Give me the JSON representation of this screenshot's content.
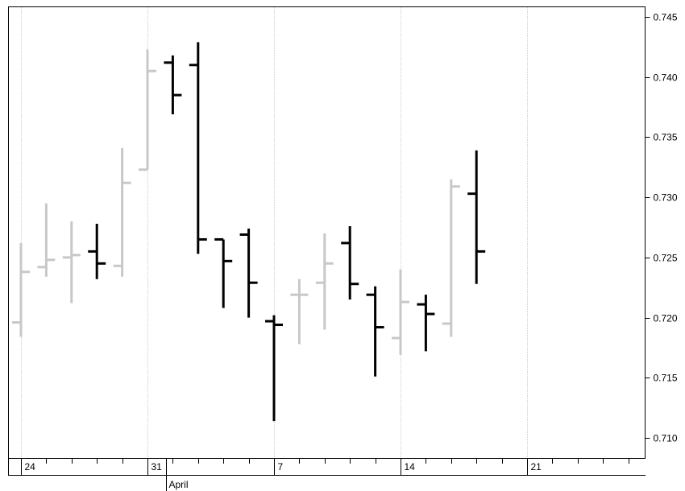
{
  "chart_data": {
    "type": "ohlc",
    "title": "",
    "xlabel": "",
    "ylabel": "",
    "ylim": [
      0.709,
      0.7455
    ],
    "y_ticks": [
      "0.745",
      "0.740",
      "0.735",
      "0.730",
      "0.725",
      "0.720",
      "0.715",
      "0.710"
    ],
    "y_tick_values": [
      0.745,
      0.74,
      0.735,
      0.73,
      0.725,
      0.72,
      0.715,
      0.71
    ],
    "x_day_labels": [
      {
        "label": "24",
        "index": 0
      },
      {
        "label": "31",
        "index": 5
      },
      {
        "label": "7",
        "index": 10
      },
      {
        "label": "14",
        "index": 15
      },
      {
        "label": "21",
        "index": 20
      }
    ],
    "x_month_labels": [
      {
        "label": "April",
        "index": 6
      }
    ],
    "series": [
      {
        "colors": {
          "up": "#c8c8c8",
          "down": "#000000"
        },
        "bars": [
          {
            "index": 0,
            "open": 0.7196,
            "high": 0.7262,
            "low": 0.7184,
            "close": 0.7238,
            "dir": "up"
          },
          {
            "index": 1,
            "open": 0.7242,
            "high": 0.7295,
            "low": 0.7234,
            "close": 0.7248,
            "dir": "up"
          },
          {
            "index": 2,
            "open": 0.725,
            "high": 0.728,
            "low": 0.7212,
            "close": 0.7252,
            "dir": "up"
          },
          {
            "index": 3,
            "open": 0.7255,
            "high": 0.7278,
            "low": 0.7232,
            "close": 0.7245,
            "dir": "down"
          },
          {
            "index": 4,
            "open": 0.7243,
            "high": 0.7341,
            "low": 0.7234,
            "close": 0.7312,
            "dir": "up"
          },
          {
            "index": 5,
            "open": 0.7323,
            "high": 0.7423,
            "low": 0.7323,
            "close": 0.7405,
            "dir": "up"
          },
          {
            "index": 6,
            "open": 0.7412,
            "high": 0.7418,
            "low": 0.7369,
            "close": 0.7385,
            "dir": "down"
          },
          {
            "index": 7,
            "open": 0.741,
            "high": 0.7429,
            "low": 0.7253,
            "close": 0.7265,
            "dir": "down"
          },
          {
            "index": 8,
            "open": 0.7265,
            "high": 0.7265,
            "low": 0.7208,
            "close": 0.7247,
            "dir": "down"
          },
          {
            "index": 9,
            "open": 0.7269,
            "high": 0.7274,
            "low": 0.72,
            "close": 0.7229,
            "dir": "down"
          },
          {
            "index": 10,
            "open": 0.7197,
            "high": 0.7202,
            "low": 0.7114,
            "close": 0.7194,
            "dir": "down"
          },
          {
            "index": 11,
            "open": 0.7219,
            "high": 0.7232,
            "low": 0.7178,
            "close": 0.7219,
            "dir": "up"
          },
          {
            "index": 12,
            "open": 0.7229,
            "high": 0.727,
            "low": 0.719,
            "close": 0.7245,
            "dir": "up"
          },
          {
            "index": 13,
            "open": 0.7262,
            "high": 0.7276,
            "low": 0.7215,
            "close": 0.7228,
            "dir": "down"
          },
          {
            "index": 14,
            "open": 0.7219,
            "high": 0.7226,
            "low": 0.7151,
            "close": 0.7192,
            "dir": "down"
          },
          {
            "index": 15,
            "open": 0.7183,
            "high": 0.724,
            "low": 0.7169,
            "close": 0.7213,
            "dir": "up"
          },
          {
            "index": 16,
            "open": 0.7211,
            "high": 0.7219,
            "low": 0.7172,
            "close": 0.7203,
            "dir": "down"
          },
          {
            "index": 17,
            "open": 0.7195,
            "high": 0.7315,
            "low": 0.7184,
            "close": 0.7309,
            "dir": "up"
          },
          {
            "index": 18,
            "open": 0.7303,
            "high": 0.7339,
            "low": 0.7228,
            "close": 0.7255,
            "dir": "down"
          }
        ]
      }
    ],
    "grid": {
      "vertical_dotted": true,
      "horizontal": false
    },
    "y_axis_side": "right"
  }
}
